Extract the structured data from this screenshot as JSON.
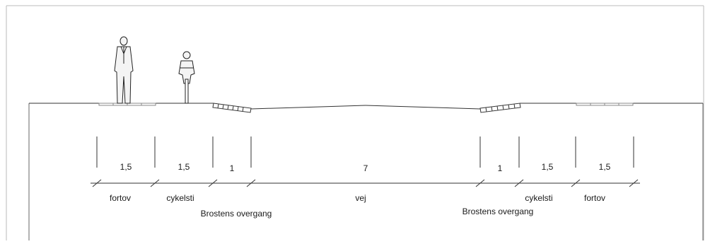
{
  "cross_section": {
    "segments": [
      {
        "key": "fortov_left",
        "dimension": "1,5"
      },
      {
        "key": "cykelsti_left",
        "dimension": "1,5"
      },
      {
        "key": "brosten_left",
        "dimension": "1"
      },
      {
        "key": "vej",
        "dimension": "7"
      },
      {
        "key": "brosten_right",
        "dimension": "1"
      },
      {
        "key": "cykelsti_right",
        "dimension": "1,5"
      },
      {
        "key": "fortov_right",
        "dimension": "1,5"
      }
    ],
    "labels": {
      "fortov_left": "fortov",
      "cykelsti_left": "cykelsti",
      "brosten_left": "Brostens overgang",
      "vej": "vej",
      "brosten_right": "Brostens overgang",
      "cykelsti_right": "cykelsti",
      "fortov_right": "fortov"
    },
    "figures": {
      "pedestrian": "pedestrian-icon",
      "cyclist": "cyclist-icon"
    }
  },
  "colors": {
    "line": "#333333",
    "frame": "#999999",
    "paving": "#555555",
    "figure_fill": "#f4f4f4"
  }
}
